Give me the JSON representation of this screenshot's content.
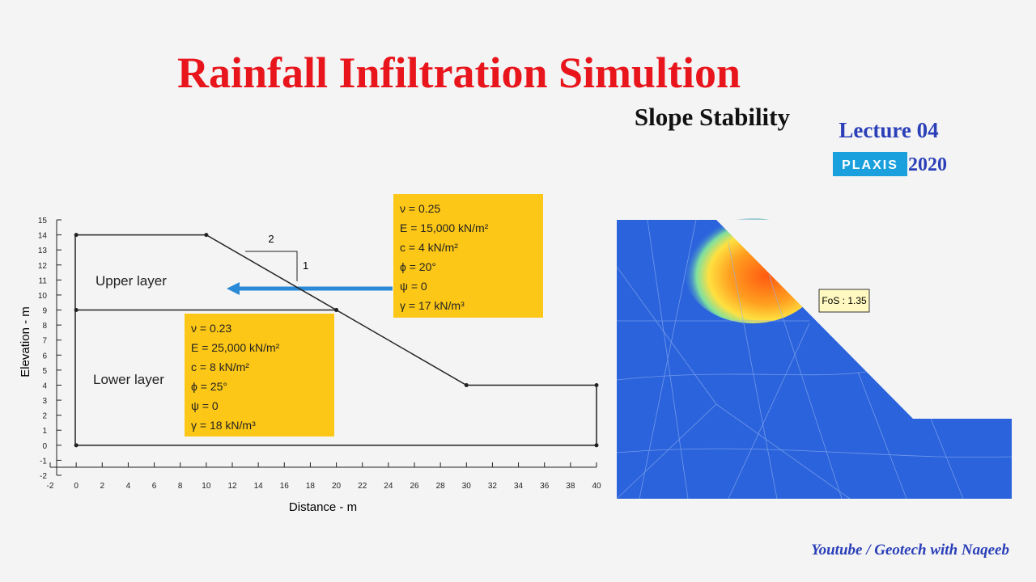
{
  "title": "Rainfall Infiltration Simultion",
  "subtitle": "Slope Stability",
  "lecture": "Lecture 04",
  "software": {
    "name": "PLAXIS",
    "version": "2020"
  },
  "chart_data": {
    "type": "line",
    "x_label": "Distance - m",
    "y_label": "Elevation - m",
    "xlim": [
      -2,
      40
    ],
    "ylim": [
      -2,
      15
    ],
    "xticks": [
      -2,
      0,
      2,
      4,
      6,
      8,
      10,
      12,
      14,
      16,
      18,
      20,
      22,
      24,
      26,
      28,
      30,
      32,
      34,
      36,
      38,
      40
    ],
    "yticks": [
      -2,
      -1,
      0,
      1,
      2,
      3,
      4,
      5,
      6,
      7,
      8,
      9,
      10,
      11,
      12,
      13,
      14,
      15
    ],
    "series": [
      {
        "color": "#222222",
        "x": [
          0,
          10,
          20,
          30,
          40
        ],
        "values": [
          14,
          14,
          9,
          4,
          4
        ]
      },
      {
        "color": "#222222",
        "x": [
          0,
          20
        ],
        "values": [
          9,
          9
        ]
      },
      {
        "color": "#222222",
        "x": [
          0,
          40
        ],
        "values": [
          0,
          0
        ]
      }
    ],
    "annotations": {
      "upper": "Upper layer",
      "lower": "Lower layer",
      "run": "2",
      "rise": "1"
    }
  },
  "upper_props": [
    "ν = 0.25",
    "E = 15,000 kN/m²",
    "c = 4 kN/m²",
    "ϕ   = 20°",
    "ψ   = 0",
    "γ = 17 kN/m³"
  ],
  "lower_props": [
    "ν = 0.23",
    "E = 25,000 kN/m²",
    "c = 8 kN/m²",
    "ϕ = 25°",
    "ψ   = 0",
    "γ = 18 kN/m³"
  ],
  "fos": "FoS : 1.35",
  "footer": "Youtube / Geotech with Naqeeb"
}
